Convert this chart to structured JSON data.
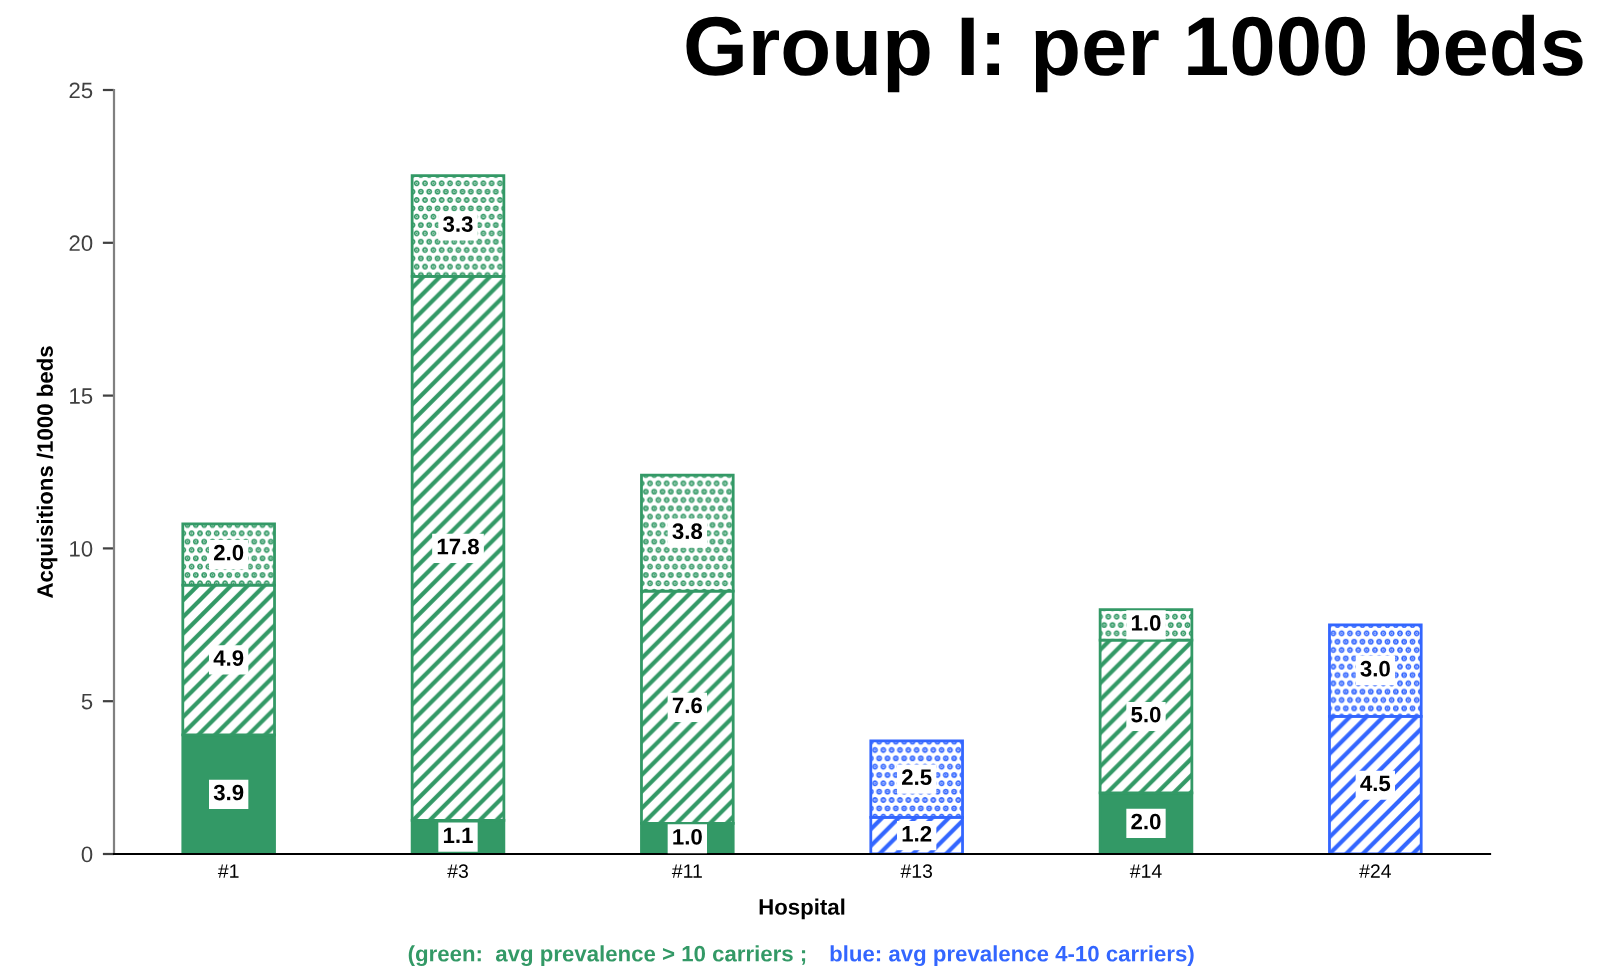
{
  "chart_data": {
    "type": "bar",
    "title": "Group I: per 1000 beds",
    "xlabel": "Hospital",
    "ylabel": "Acquisitions /1000 beds",
    "categories": [
      "#1",
      "#3",
      "#11",
      "#13",
      "#14",
      "#24"
    ],
    "stacked": true,
    "grid": false,
    "ylim": [
      0,
      25
    ],
    "yticks": [
      0,
      5,
      10,
      15,
      20,
      25
    ],
    "series": [
      {
        "colors": [
          "#339966",
          "#339966",
          "#339966",
          "#3366ff",
          "#339966",
          "#3366ff"
        ],
        "values": [
          3.9,
          1.1,
          1.0,
          null,
          2.0,
          null
        ],
        "value_labels": [
          "3.9",
          "1.1",
          "1.0",
          null,
          "2.0",
          null
        ]
      },
      {
        "colors": [
          "#339966",
          "#339966",
          "#339966",
          "#3366ff",
          "#339966",
          "#3366ff"
        ],
        "values": [
          4.9,
          17.8,
          7.6,
          1.2,
          5.0,
          4.5
        ],
        "value_labels": [
          "4.9",
          "17.8",
          "7.6",
          "1.2",
          "5.0",
          "4.5"
        ]
      },
      {
        "colors": [
          "#339966",
          "#339966",
          "#339966",
          "#3366ff",
          "#339966",
          "#3366ff"
        ],
        "values": [
          2.0,
          3.3,
          3.8,
          2.5,
          1.0,
          3.0
        ],
        "value_labels": [
          "2.0",
          "3.3",
          "3.8",
          "2.5",
          "1.0",
          "3.0"
        ]
      }
    ],
    "annotations": [
      "(green:  avg prevalence > 10 carriers ;",
      "blue: avg prevalence 4-10 carriers)"
    ]
  }
}
